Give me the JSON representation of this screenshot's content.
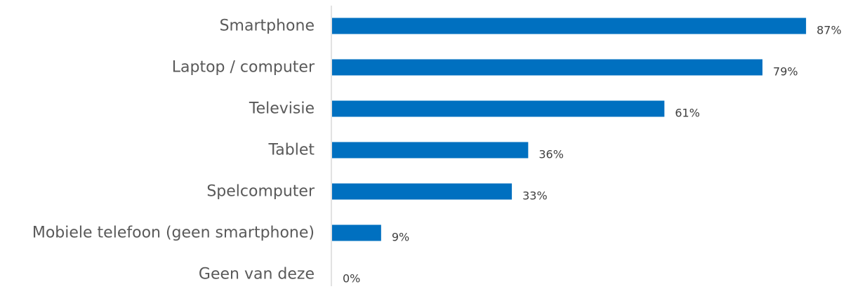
{
  "chart_data": {
    "type": "bar",
    "orientation": "horizontal",
    "categories": [
      "Smartphone",
      "Laptop / computer",
      "Televisie",
      "Tablet",
      "Spelcomputer",
      "Mobiele telefoon (geen smartphone)",
      "Geen van deze"
    ],
    "values": [
      87,
      79,
      61,
      36,
      33,
      9,
      0
    ],
    "value_labels": [
      "87%",
      "79%",
      "61%",
      "36%",
      "33%",
      "9%",
      "0%"
    ],
    "unit": "%",
    "xlim": [
      0,
      100
    ],
    "grid": false,
    "legend": "none",
    "bar_color": "#0070C0"
  }
}
